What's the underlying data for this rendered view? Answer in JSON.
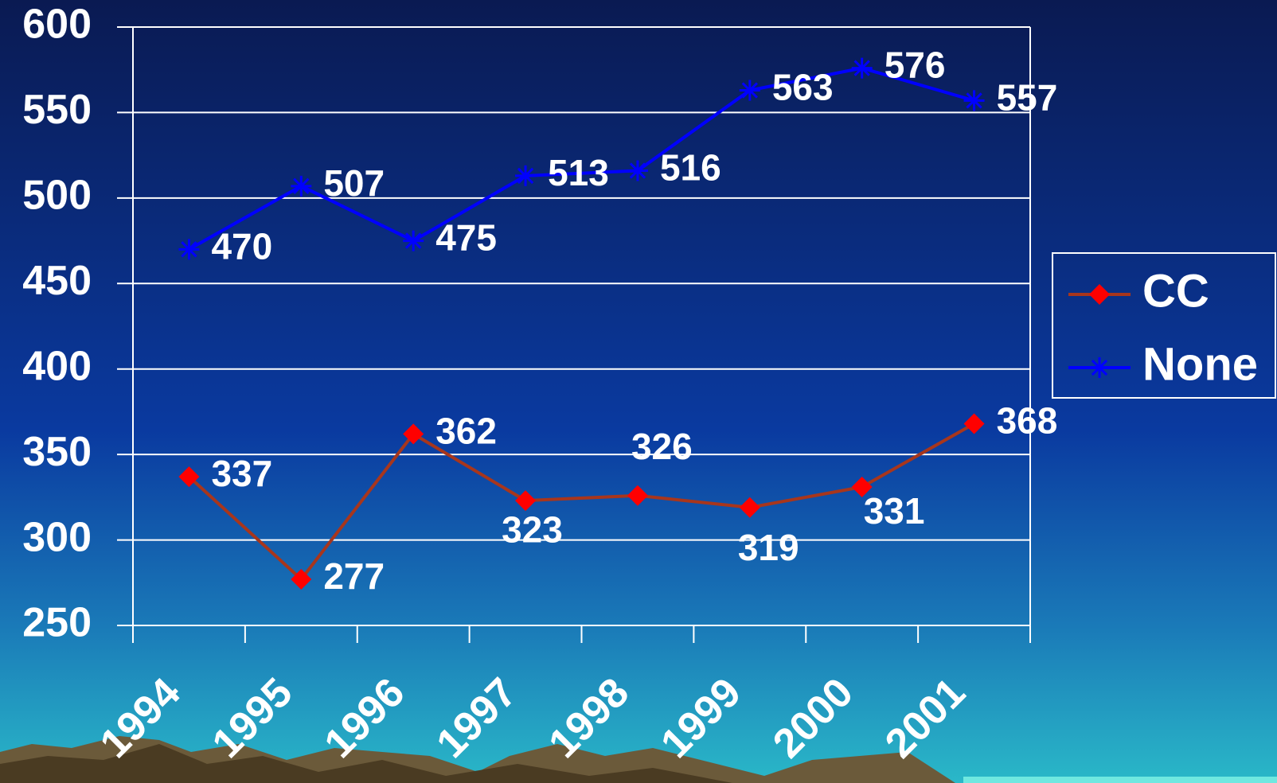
{
  "chart_data": {
    "type": "line",
    "categories": [
      "1994",
      "1995",
      "1996",
      "1997",
      "1998",
      "1999",
      "2000",
      "2001"
    ],
    "series": [
      {
        "name": "CC",
        "color": "#a8361c",
        "marker_color": "#ff0000",
        "marker": "diamond",
        "values": [
          337,
          277,
          362,
          323,
          326,
          319,
          331,
          368
        ]
      },
      {
        "name": "None",
        "color": "#0000ff",
        "marker_color": "#0000ff",
        "marker": "asterisk",
        "values": [
          470,
          507,
          475,
          513,
          516,
          563,
          576,
          557
        ]
      }
    ],
    "ylim": [
      250,
      600
    ],
    "yticks": [
      250,
      300,
      350,
      400,
      450,
      500,
      550,
      600
    ],
    "grid": true,
    "legend": "right"
  }
}
